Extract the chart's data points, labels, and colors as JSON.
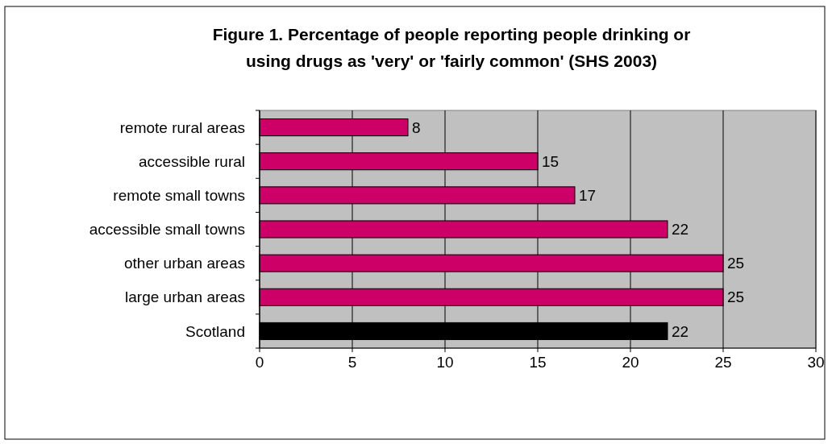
{
  "chart_data": {
    "type": "bar",
    "orientation": "horizontal",
    "title": "Figure 1. Percentage of people reporting people drinking or using drugs as 'very' or 'fairly common' (SHS 2003)",
    "categories": [
      "remote rural areas",
      "accessible rural",
      "remote small towns",
      "accessible small towns",
      "other urban areas",
      "large urban areas",
      "Scotland"
    ],
    "values": [
      8,
      15,
      17,
      22,
      25,
      25,
      22
    ],
    "colors": [
      "#cc0066",
      "#cc0066",
      "#cc0066",
      "#cc0066",
      "#cc0066",
      "#cc0066",
      "#000000"
    ],
    "xlim": [
      0,
      30
    ],
    "xticks": [
      0,
      5,
      10,
      15,
      20,
      25,
      30
    ],
    "grid": "x",
    "data_labels": true
  }
}
